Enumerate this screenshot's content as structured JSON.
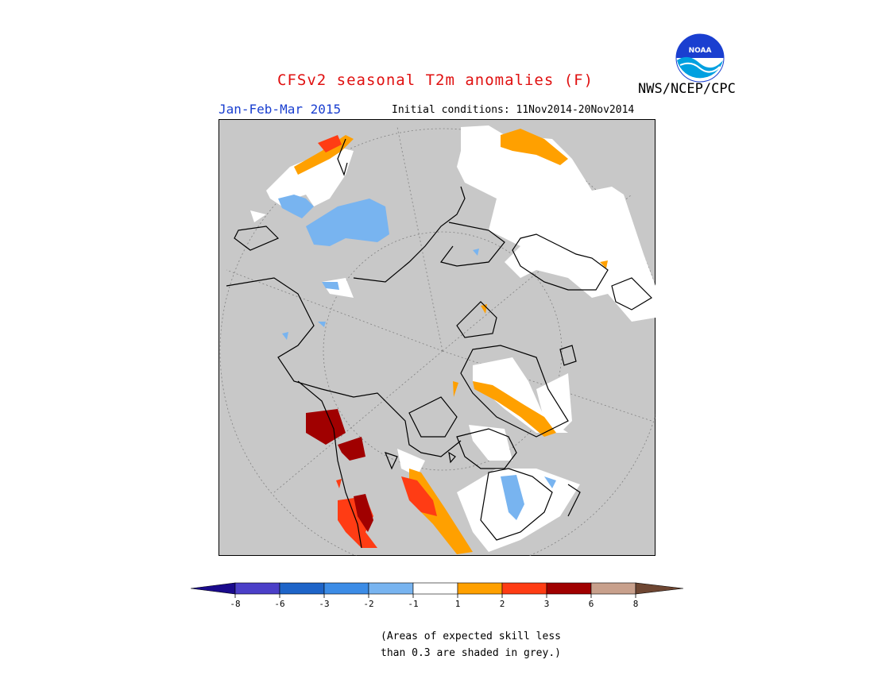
{
  "header": {
    "title": "CFSv2 seasonal T2m anomalies (F)",
    "agency": "NWS/NCEP/CPC",
    "logo_text": "NOAA",
    "period": "Jan-Feb-Mar 2015",
    "initial_conditions": "Initial conditions: 11Nov2014-20Nov2014"
  },
  "colors": {
    "title": "#e01010",
    "period": "#1a3fd0",
    "grey_mask": "#c8c8c8",
    "land_outline": "#000000"
  },
  "legend": {
    "ticks": [
      "-8",
      "-6",
      "-3",
      "-2",
      "-1",
      "1",
      "2",
      "3",
      "6",
      "8"
    ],
    "colors": [
      "#1a0a8c",
      "#4b3fc8",
      "#1e64c8",
      "#3c8ce6",
      "#78b4f0",
      "#ffffff",
      "#ffa000",
      "#ff3c14",
      "#a00000",
      "#c8a08c",
      "#6e4632"
    ]
  },
  "footnote": {
    "line1": "(Areas of expected skill less",
    "line2": "than 0.3 are shaded in grey.)"
  }
}
